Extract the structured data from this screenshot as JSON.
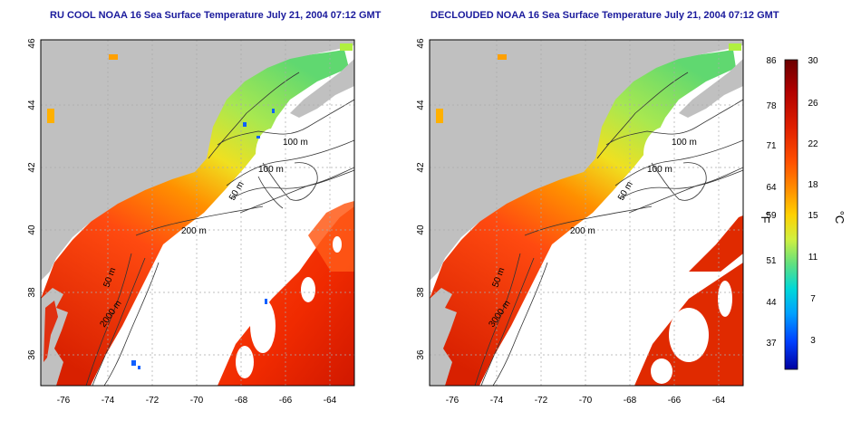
{
  "colors": {
    "land": "#c0c0c0",
    "ocean_no_data": "#ffffff",
    "title": "#1a1a9c",
    "contour": "#333333",
    "grid": "#aaaaaa"
  },
  "maps": [
    {
      "title": "RU COOL NOAA 16 Sea Surface Temperature July 21, 2004 07:12 GMT",
      "variant": "cloudy"
    },
    {
      "title": "DECLOUDED NOAA 16 Sea Surface Temperature July 21, 2004 07:12 GMT",
      "variant": "declouded"
    }
  ],
  "axes": {
    "lat_ticks": [
      "36",
      "38",
      "40",
      "42",
      "44",
      "46"
    ],
    "lon_ticks": [
      "-76",
      "-74",
      "-72",
      "-70",
      "-68",
      "-66",
      "-64"
    ],
    "lat_range": [
      35,
      46
    ],
    "lon_range": [
      -77,
      -63
    ]
  },
  "contour_labels": {
    "left": [
      "100 m",
      "100 m",
      "50 m",
      "200 m",
      "50 m",
      "2000 m"
    ],
    "right": [
      "100 m",
      "100 m",
      "50 m",
      "200 m",
      "50 m",
      "3000 m"
    ]
  },
  "colorbar": {
    "f_label": "°F",
    "c_label": "°C",
    "f_ticks": [
      "86",
      "78",
      "71",
      "64",
      "59",
      "51",
      "44",
      "37"
    ],
    "c_ticks": [
      "30",
      "26",
      "22",
      "18",
      "15",
      "11",
      "7",
      "3"
    ],
    "c_range": [
      0,
      30
    ],
    "stops": [
      "#6b0000",
      "#b00000",
      "#e02000",
      "#ff5000",
      "#ff9000",
      "#ffd000",
      "#d0f040",
      "#60e080",
      "#00d8d8",
      "#00a0ff",
      "#0040ff",
      "#0000a0"
    ]
  }
}
